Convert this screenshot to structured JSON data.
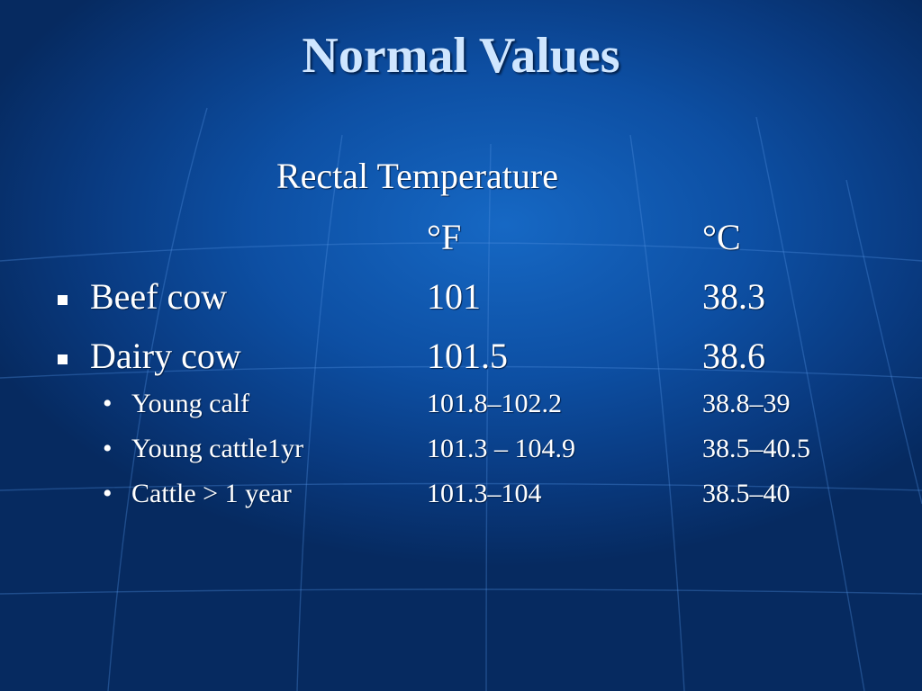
{
  "slide": {
    "title": "Normal Values",
    "subtitle": "Rectal Temperature",
    "col_f": "°F",
    "col_c": "°C",
    "rows": [
      {
        "label": "Beef cow",
        "f": "101",
        "c": "38.3"
      },
      {
        "label": "Dairy cow",
        "f": "101.5",
        "c": "38.6"
      },
      {
        "label": "Young calf",
        "f": "101.8–102.2",
        "c": "38.8–39"
      },
      {
        "label": "Young cattle1yr",
        "f": "101.3 – 104.9",
        "c": "38.5–40.5"
      },
      {
        "label": "Cattle > 1 year",
        "f": "101.3–104",
        "c": "38.5–40"
      }
    ],
    "bullet_primary": "square",
    "bullet_secondary": "•",
    "colors": {
      "background": "#0d4fa3",
      "title": "#cfe6ff",
      "text": "#ffffff"
    }
  }
}
